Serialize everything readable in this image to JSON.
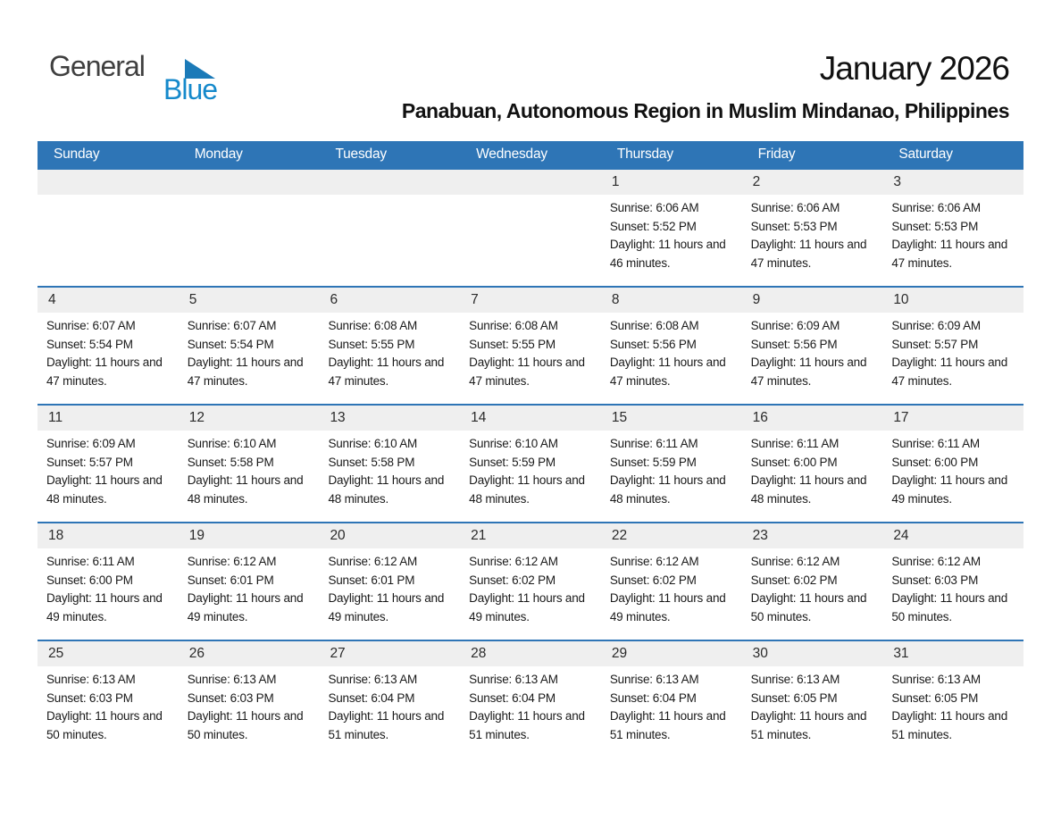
{
  "logo": {
    "general": "General",
    "blue": "Blue"
  },
  "header": {
    "month_title": "January 2026",
    "location": "Panabuan, Autonomous Region in Muslim Mindanao, Philippines"
  },
  "colors": {
    "header_blue": "#2E75B6",
    "row_separator_blue": "#2E75B6",
    "day_band_gray": "#EFEFEF",
    "logo_text_dark": "#3F3F3F",
    "logo_text_blue": "#1589CB",
    "logo_triangle_blue": "#1B7AB8"
  },
  "calendar": {
    "weekdays": [
      "Sunday",
      "Monday",
      "Tuesday",
      "Wednesday",
      "Thursday",
      "Friday",
      "Saturday"
    ],
    "weeks": [
      [
        null,
        null,
        null,
        null,
        {
          "day": "1",
          "sunrise": "Sunrise: 6:06 AM",
          "sunset": "Sunset: 5:52 PM",
          "daylight": "Daylight: 11 hours and 46 minutes."
        },
        {
          "day": "2",
          "sunrise": "Sunrise: 6:06 AM",
          "sunset": "Sunset: 5:53 PM",
          "daylight": "Daylight: 11 hours and 47 minutes."
        },
        {
          "day": "3",
          "sunrise": "Sunrise: 6:06 AM",
          "sunset": "Sunset: 5:53 PM",
          "daylight": "Daylight: 11 hours and 47 minutes."
        }
      ],
      [
        {
          "day": "4",
          "sunrise": "Sunrise: 6:07 AM",
          "sunset": "Sunset: 5:54 PM",
          "daylight": "Daylight: 11 hours and 47 minutes."
        },
        {
          "day": "5",
          "sunrise": "Sunrise: 6:07 AM",
          "sunset": "Sunset: 5:54 PM",
          "daylight": "Daylight: 11 hours and 47 minutes."
        },
        {
          "day": "6",
          "sunrise": "Sunrise: 6:08 AM",
          "sunset": "Sunset: 5:55 PM",
          "daylight": "Daylight: 11 hours and 47 minutes."
        },
        {
          "day": "7",
          "sunrise": "Sunrise: 6:08 AM",
          "sunset": "Sunset: 5:55 PM",
          "daylight": "Daylight: 11 hours and 47 minutes."
        },
        {
          "day": "8",
          "sunrise": "Sunrise: 6:08 AM",
          "sunset": "Sunset: 5:56 PM",
          "daylight": "Daylight: 11 hours and 47 minutes."
        },
        {
          "day": "9",
          "sunrise": "Sunrise: 6:09 AM",
          "sunset": "Sunset: 5:56 PM",
          "daylight": "Daylight: 11 hours and 47 minutes."
        },
        {
          "day": "10",
          "sunrise": "Sunrise: 6:09 AM",
          "sunset": "Sunset: 5:57 PM",
          "daylight": "Daylight: 11 hours and 47 minutes."
        }
      ],
      [
        {
          "day": "11",
          "sunrise": "Sunrise: 6:09 AM",
          "sunset": "Sunset: 5:57 PM",
          "daylight": "Daylight: 11 hours and 48 minutes."
        },
        {
          "day": "12",
          "sunrise": "Sunrise: 6:10 AM",
          "sunset": "Sunset: 5:58 PM",
          "daylight": "Daylight: 11 hours and 48 minutes."
        },
        {
          "day": "13",
          "sunrise": "Sunrise: 6:10 AM",
          "sunset": "Sunset: 5:58 PM",
          "daylight": "Daylight: 11 hours and 48 minutes."
        },
        {
          "day": "14",
          "sunrise": "Sunrise: 6:10 AM",
          "sunset": "Sunset: 5:59 PM",
          "daylight": "Daylight: 11 hours and 48 minutes."
        },
        {
          "day": "15",
          "sunrise": "Sunrise: 6:11 AM",
          "sunset": "Sunset: 5:59 PM",
          "daylight": "Daylight: 11 hours and 48 minutes."
        },
        {
          "day": "16",
          "sunrise": "Sunrise: 6:11 AM",
          "sunset": "Sunset: 6:00 PM",
          "daylight": "Daylight: 11 hours and 48 minutes."
        },
        {
          "day": "17",
          "sunrise": "Sunrise: 6:11 AM",
          "sunset": "Sunset: 6:00 PM",
          "daylight": "Daylight: 11 hours and 49 minutes."
        }
      ],
      [
        {
          "day": "18",
          "sunrise": "Sunrise: 6:11 AM",
          "sunset": "Sunset: 6:00 PM",
          "daylight": "Daylight: 11 hours and 49 minutes."
        },
        {
          "day": "19",
          "sunrise": "Sunrise: 6:12 AM",
          "sunset": "Sunset: 6:01 PM",
          "daylight": "Daylight: 11 hours and 49 minutes."
        },
        {
          "day": "20",
          "sunrise": "Sunrise: 6:12 AM",
          "sunset": "Sunset: 6:01 PM",
          "daylight": "Daylight: 11 hours and 49 minutes."
        },
        {
          "day": "21",
          "sunrise": "Sunrise: 6:12 AM",
          "sunset": "Sunset: 6:02 PM",
          "daylight": "Daylight: 11 hours and 49 minutes."
        },
        {
          "day": "22",
          "sunrise": "Sunrise: 6:12 AM",
          "sunset": "Sunset: 6:02 PM",
          "daylight": "Daylight: 11 hours and 49 minutes."
        },
        {
          "day": "23",
          "sunrise": "Sunrise: 6:12 AM",
          "sunset": "Sunset: 6:02 PM",
          "daylight": "Daylight: 11 hours and 50 minutes."
        },
        {
          "day": "24",
          "sunrise": "Sunrise: 6:12 AM",
          "sunset": "Sunset: 6:03 PM",
          "daylight": "Daylight: 11 hours and 50 minutes."
        }
      ],
      [
        {
          "day": "25",
          "sunrise": "Sunrise: 6:13 AM",
          "sunset": "Sunset: 6:03 PM",
          "daylight": "Daylight: 11 hours and 50 minutes."
        },
        {
          "day": "26",
          "sunrise": "Sunrise: 6:13 AM",
          "sunset": "Sunset: 6:03 PM",
          "daylight": "Daylight: 11 hours and 50 minutes."
        },
        {
          "day": "27",
          "sunrise": "Sunrise: 6:13 AM",
          "sunset": "Sunset: 6:04 PM",
          "daylight": "Daylight: 11 hours and 51 minutes."
        },
        {
          "day": "28",
          "sunrise": "Sunrise: 6:13 AM",
          "sunset": "Sunset: 6:04 PM",
          "daylight": "Daylight: 11 hours and 51 minutes."
        },
        {
          "day": "29",
          "sunrise": "Sunrise: 6:13 AM",
          "sunset": "Sunset: 6:04 PM",
          "daylight": "Daylight: 11 hours and 51 minutes."
        },
        {
          "day": "30",
          "sunrise": "Sunrise: 6:13 AM",
          "sunset": "Sunset: 6:05 PM",
          "daylight": "Daylight: 11 hours and 51 minutes."
        },
        {
          "day": "31",
          "sunrise": "Sunrise: 6:13 AM",
          "sunset": "Sunset: 6:05 PM",
          "daylight": "Daylight: 11 hours and 51 minutes."
        }
      ]
    ]
  }
}
